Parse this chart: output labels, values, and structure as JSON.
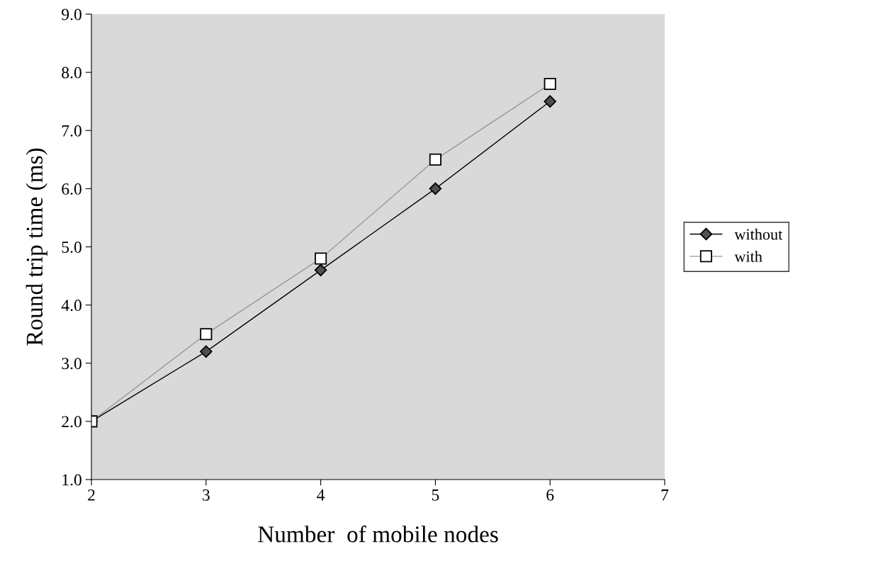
{
  "chart_data": {
    "type": "line",
    "xlabel": "Number  of mobile nodes",
    "ylabel": "Round trip time (ms)",
    "x": [
      2,
      3,
      4,
      5,
      6
    ],
    "series": [
      {
        "name": "without",
        "color": "#000000",
        "marker": "diamond",
        "values": [
          2.0,
          3.2,
          4.6,
          6.0,
          7.5
        ]
      },
      {
        "name": "with",
        "color": "#999999",
        "marker": "square",
        "values": [
          2.0,
          3.5,
          4.8,
          6.5,
          7.8
        ]
      }
    ],
    "xlim": [
      2,
      7
    ],
    "xticks": [
      2,
      3,
      4,
      5,
      6,
      7
    ],
    "ylim": [
      1,
      9
    ],
    "yticks": [
      {
        "value": 1,
        "label": "1.0"
      },
      {
        "value": 2,
        "label": "2.0"
      },
      {
        "value": 3,
        "label": "3.0"
      },
      {
        "value": 4,
        "label": "4.0"
      },
      {
        "value": 5,
        "label": "5.0"
      },
      {
        "value": 6,
        "label": "6.0"
      },
      {
        "value": 7,
        "label": "7.0"
      },
      {
        "value": 8,
        "label": "8.0"
      },
      {
        "value": 9,
        "label": "9.0"
      }
    ],
    "grid": false,
    "legend": "right"
  }
}
